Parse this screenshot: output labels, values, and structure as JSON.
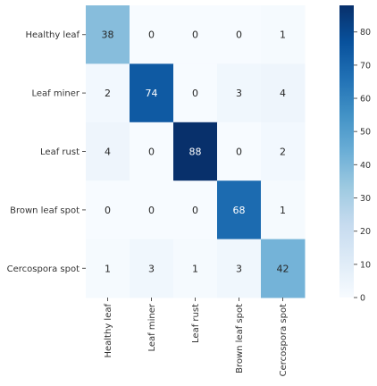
{
  "chart_data": {
    "type": "heatmap",
    "row_labels": [
      "Healthy leaf",
      "Leaf miner",
      "Leaf rust",
      "Brown leaf spot",
      "Cercospora spot"
    ],
    "col_labels": [
      "Healthy leaf",
      "Leaf miner",
      "Leaf rust",
      "Brown leaf spot",
      "Cercospora spot"
    ],
    "values": [
      [
        38,
        0,
        0,
        0,
        1
      ],
      [
        2,
        74,
        0,
        3,
        4
      ],
      [
        4,
        0,
        88,
        0,
        2
      ],
      [
        0,
        0,
        0,
        68,
        1
      ],
      [
        1,
        3,
        1,
        3,
        42
      ]
    ],
    "colormap": "Blues",
    "colorbar": {
      "vmin": 0,
      "vmax": 88,
      "ticks": [
        0,
        10,
        20,
        30,
        40,
        50,
        60,
        70,
        80
      ]
    },
    "annotations": true,
    "label_color": "#333333",
    "grid": false
  }
}
